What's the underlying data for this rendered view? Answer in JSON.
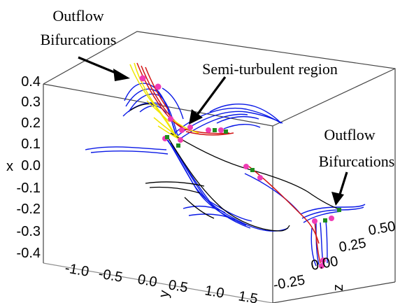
{
  "annotations": {
    "outflow_left": [
      "Outflow",
      "Bifurcations"
    ],
    "semi_turbulent": "Semi-turbulent region",
    "outflow_right": [
      "Outflow",
      "Bifurcations"
    ]
  },
  "axes": {
    "x": {
      "label": "x",
      "ticks": [
        "0.4",
        "0.3",
        "0.2",
        "0.1",
        "0.0",
        "-0.1",
        "-0.2",
        "-0.3",
        "-0.4"
      ]
    },
    "y": {
      "label": "y",
      "ticks": [
        "-1.0",
        "-0.5",
        "0.0",
        "0.5",
        "1.0",
        "1.5"
      ]
    },
    "z": {
      "label": "z",
      "ticks": [
        "0.50",
        "0.25",
        "0.00",
        "-0.25"
      ]
    }
  },
  "colors": {
    "blue": "#0a19e6",
    "black": "#000000",
    "red": "#d21414",
    "yellow": "#f0e600",
    "pink": "#f03cb4",
    "green": "#1e8c1e"
  }
}
